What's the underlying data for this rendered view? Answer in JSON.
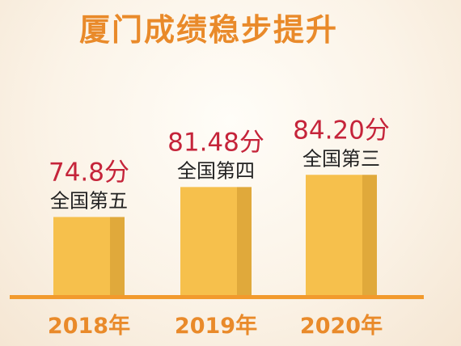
{
  "title": "厦门成绩稳步提升",
  "chart_data": {
    "type": "bar",
    "title": "厦门成绩稳步提升",
    "categories": [
      "2018年",
      "2019年",
      "2020年"
    ],
    "values": [
      74.8,
      81.48,
      84.2
    ],
    "value_labels": [
      "74.8分",
      "81.48分",
      "84.20分"
    ],
    "rank_labels": [
      "全国第五",
      "全国第四",
      "全国第三"
    ],
    "xlabel": "",
    "ylabel": "",
    "grid": false,
    "legend": "none"
  },
  "colors": {
    "title": "#e98a2a",
    "value_label": "#c5243a",
    "rank_label": "#222222",
    "category_label": "#e98a2a",
    "bar_face": "#f6c04c",
    "bar_side": "#e0a93b",
    "baseline": "#f29a2d"
  }
}
